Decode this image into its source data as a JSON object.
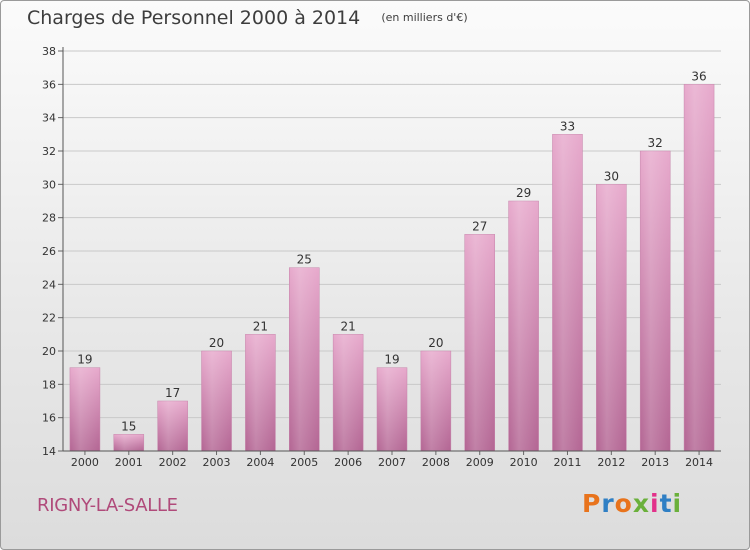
{
  "header": {
    "title": "Charges de Personnel 2000 à 2014",
    "subtitle": "(en milliers d'€)"
  },
  "footer": {
    "commune": "RIGNY-LA-SALLE",
    "logo_text": "Proxiti",
    "logo_colors": [
      "#e8731c",
      "#2f7fc4",
      "#e8731c",
      "#6ab03b",
      "#e2318a",
      "#2f7fc4",
      "#6ab03b"
    ]
  },
  "chart_data": {
    "type": "bar",
    "title": "Charges de Personnel 2000 à 2014",
    "subtitle": "(en milliers d'€)",
    "xlabel": "",
    "ylabel": "",
    "categories": [
      "2000",
      "2001",
      "2002",
      "2003",
      "2004",
      "2005",
      "2006",
      "2007",
      "2008",
      "2009",
      "2010",
      "2011",
      "2012",
      "2013",
      "2014"
    ],
    "values": [
      19,
      15,
      17,
      20,
      21,
      25,
      21,
      19,
      20,
      27,
      29,
      33,
      30,
      32,
      36
    ],
    "ylim": [
      14,
      38
    ],
    "yticks": [
      14,
      16,
      18,
      20,
      22,
      24,
      26,
      28,
      30,
      32,
      34,
      36,
      38
    ],
    "grid": true,
    "legend": "none",
    "bar_color": "#d98bb5",
    "grid_color": "#c9c9c9"
  }
}
